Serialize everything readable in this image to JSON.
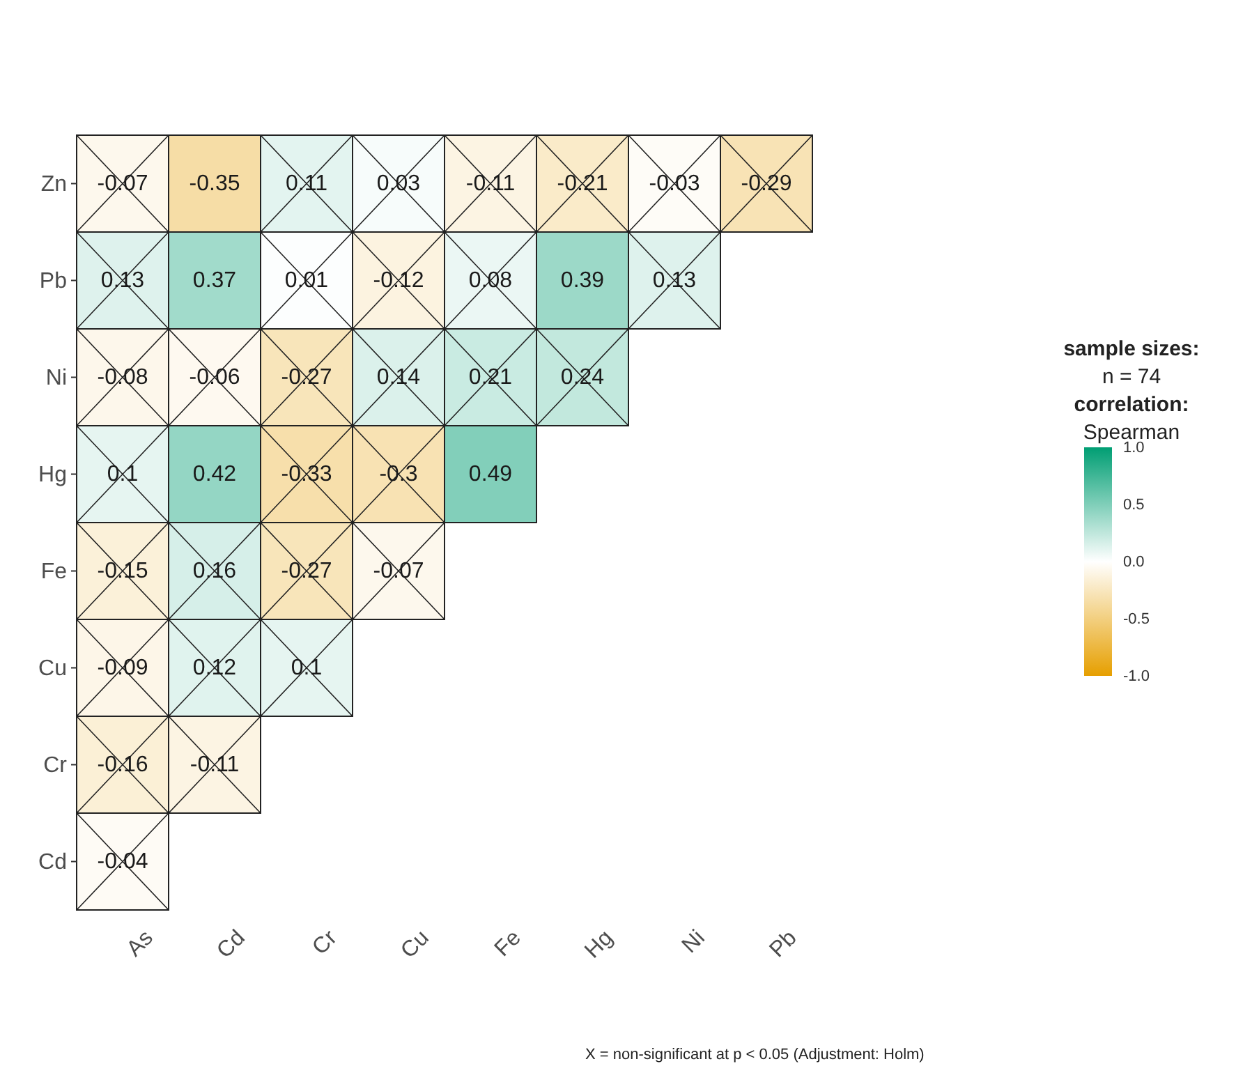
{
  "chart_data": {
    "type": "heatmap",
    "categories": [
      "As",
      "Cd",
      "Cr",
      "Cu",
      "Fe",
      "Hg",
      "Ni",
      "Pb"
    ],
    "y_categories": [
      "Zn",
      "Pb",
      "Ni",
      "Hg",
      "Fe",
      "Cu",
      "Cr",
      "Cd"
    ],
    "cells": [
      [
        -0.07,
        -0.35,
        0.11,
        0.03,
        -0.11,
        -0.21,
        -0.03,
        -0.29
      ],
      [
        0.13,
        0.37,
        0.01,
        -0.12,
        0.08,
        0.39,
        0.13,
        null
      ],
      [
        -0.08,
        -0.06,
        -0.27,
        0.14,
        0.21,
        0.24,
        null,
        null
      ],
      [
        0.1,
        0.42,
        -0.33,
        -0.3,
        0.49,
        null,
        null,
        null
      ],
      [
        -0.15,
        0.16,
        -0.27,
        -0.07,
        null,
        null,
        null,
        null
      ],
      [
        -0.09,
        0.12,
        0.1,
        null,
        null,
        null,
        null,
        null
      ],
      [
        -0.16,
        -0.11,
        null,
        null,
        null,
        null,
        null,
        null
      ],
      [
        -0.04,
        null,
        null,
        null,
        null,
        null,
        null,
        null
      ]
    ],
    "data_labels": true,
    "clim": [
      -1,
      1
    ],
    "cticks": [
      {
        "value": 1,
        "label": "1.0"
      },
      {
        "value": 0.5,
        "label": "0.5"
      },
      {
        "value": 0,
        "label": "0.0"
      },
      {
        "value": -0.5,
        "label": "-0.5"
      },
      {
        "value": -1,
        "label": "-1.0"
      }
    ],
    "colors": [
      "#e69f00",
      "#ffffff",
      "#009e73"
    ],
    "clabel": "correlation: Spearman",
    "legend_title": "sample sizes: n = 74",
    "annotations": [
      "X = non-significant at p < 0.05 (Adjustment: Holm)"
    ]
  }
}
